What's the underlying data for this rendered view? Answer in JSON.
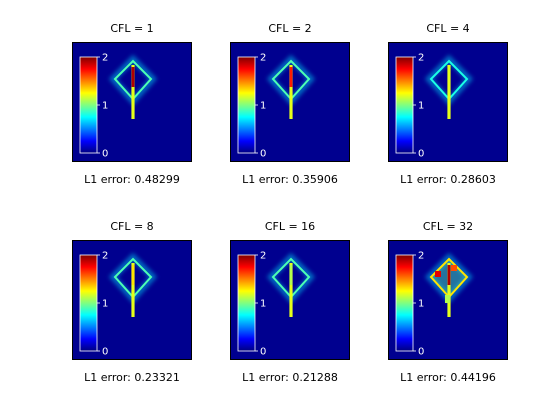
{
  "figure": {
    "colormap": "jet",
    "background_color": "#00008f"
  },
  "chart_data": [
    {
      "type": "heatmap",
      "title": "CFL = 1",
      "caption": "L1 error: 0.48299",
      "colorbar": {
        "ticks": [
          "0",
          "1",
          "2"
        ],
        "range": [
          0,
          2
        ]
      },
      "pattern": {
        "diamond_value": 0.9,
        "peak_value": 1.9,
        "pixelation": 0
      }
    },
    {
      "type": "heatmap",
      "title": "CFL = 2",
      "caption": "L1 error: 0.35906",
      "colorbar": {
        "ticks": [
          "0",
          "1",
          "2"
        ],
        "range": [
          0,
          2
        ]
      },
      "pattern": {
        "diamond_value": 0.9,
        "peak_value": 1.7,
        "pixelation": 0
      }
    },
    {
      "type": "heatmap",
      "title": "CFL = 4",
      "caption": "L1 error: 0.28603",
      "colorbar": {
        "ticks": [
          "0",
          "1",
          "2"
        ],
        "range": [
          0,
          2
        ]
      },
      "pattern": {
        "diamond_value": 0.8,
        "peak_value": 1.2,
        "pixelation": 0
      }
    },
    {
      "type": "heatmap",
      "title": "CFL = 8",
      "caption": "L1 error: 0.23321",
      "colorbar": {
        "ticks": [
          "0",
          "1",
          "2"
        ],
        "range": [
          0,
          2
        ]
      },
      "pattern": {
        "diamond_value": 0.9,
        "peak_value": 1.3,
        "pixelation": 0
      }
    },
    {
      "type": "heatmap",
      "title": "CFL = 16",
      "caption": "L1 error: 0.21288",
      "colorbar": {
        "ticks": [
          "0",
          "1",
          "2"
        ],
        "range": [
          0,
          2
        ]
      },
      "pattern": {
        "diamond_value": 0.9,
        "peak_value": 1.1,
        "pixelation": 0
      }
    },
    {
      "type": "heatmap",
      "title": "CFL = 32",
      "caption": "L1 error: 0.44196",
      "colorbar": {
        "ticks": [
          "0",
          "1",
          "2"
        ],
        "range": [
          0,
          2
        ]
      },
      "pattern": {
        "diamond_value": 1.3,
        "peak_value": 1.9,
        "pixelation": 1
      }
    }
  ]
}
